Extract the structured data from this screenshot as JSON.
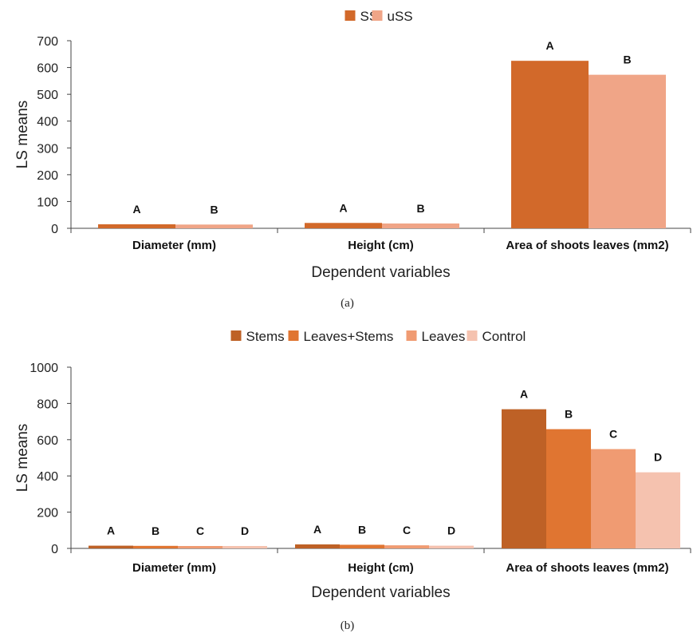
{
  "chart_data": [
    {
      "type": "bar",
      "panel_label": "(a)",
      "categories": [
        "Diameter (mm)",
        "Height (cm)",
        "Area of shoots leaves (mm2)"
      ],
      "series": [
        {
          "name": "SS",
          "color": "#D2692A",
          "values": [
            15,
            20,
            625
          ],
          "letters": [
            "A",
            "A",
            "A"
          ]
        },
        {
          "name": "uSS",
          "color": "#F0A587",
          "values": [
            14,
            18,
            573
          ],
          "letters": [
            "B",
            "B",
            "B"
          ]
        }
      ],
      "ylabel": "LS means",
      "xlabel": "Dependent variables",
      "ylim": [
        0,
        700
      ],
      "yticks": [
        0,
        100,
        200,
        300,
        400,
        500,
        600,
        700
      ],
      "legend_position": "top-center",
      "grid": false
    },
    {
      "type": "bar",
      "panel_label": "(b)",
      "categories": [
        "Diameter (mm)",
        "Height (cm)",
        "Area of shoots leaves (mm2)"
      ],
      "series": [
        {
          "name": "Stems",
          "color": "#BE6126",
          "values": [
            15,
            22,
            768
          ],
          "letters": [
            "A",
            "A",
            "A"
          ]
        },
        {
          "name": "Leaves+Stems",
          "color": "#E07531",
          "values": [
            14,
            20,
            658
          ],
          "letters": [
            "B",
            "B",
            "B"
          ]
        },
        {
          "name": "Leaves",
          "color": "#F09B72",
          "values": [
            13,
            17,
            548
          ],
          "letters": [
            "C",
            "C",
            "C"
          ]
        },
        {
          "name": "Control",
          "color": "#F5C2AF",
          "values": [
            12,
            15,
            420
          ],
          "letters": [
            "D",
            "D",
            "D"
          ]
        }
      ],
      "ylabel": "LS means",
      "xlabel": "Dependent variables",
      "ylim": [
        0,
        1000
      ],
      "yticks": [
        0,
        200,
        400,
        600,
        800,
        1000
      ],
      "legend_position": "top-center",
      "grid": false
    }
  ]
}
